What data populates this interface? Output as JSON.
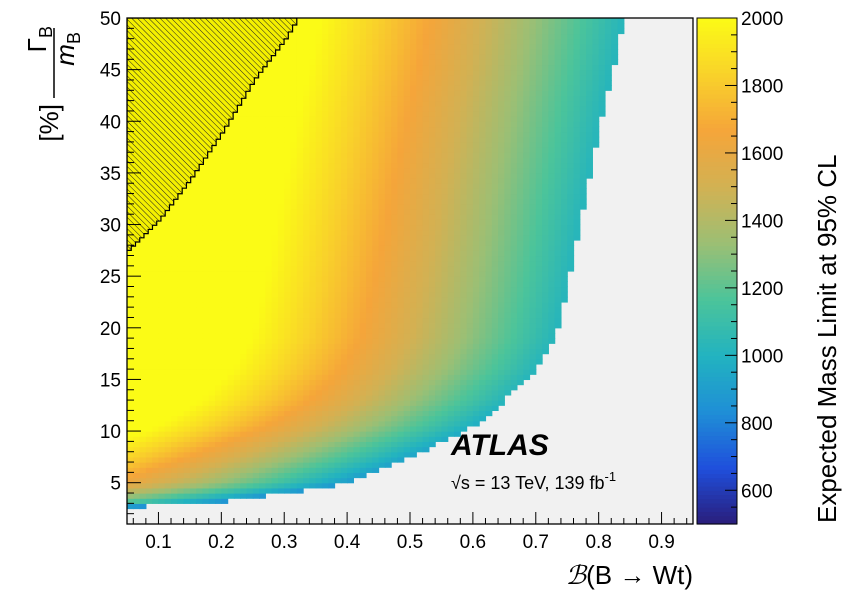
{
  "chart_data": {
    "type": "heatmap",
    "xlabel_prefix": "ℬ",
    "xlabel_rest": "(B → Wt)",
    "ylabel_num": "Γ",
    "ylabel_num_sub": "B",
    "ylabel_den": "m",
    "ylabel_den_sub": "B",
    "ylabel_unit": "[%]",
    "zlabel": "Expected Mass Limit at 95% CL",
    "xlim": [
      0.05,
      0.95
    ],
    "ylim": [
      1,
      50
    ],
    "zlim": [
      500,
      2000
    ],
    "x_ticks": [
      "0.1",
      "0.2",
      "0.3",
      "0.4",
      "0.5",
      "0.6",
      "0.7",
      "0.8",
      "0.9"
    ],
    "x_tick_values": [
      0.1,
      0.2,
      0.3,
      0.4,
      0.5,
      0.6,
      0.7,
      0.8,
      0.9
    ],
    "y_ticks": [
      "5",
      "10",
      "15",
      "20",
      "25",
      "30",
      "35",
      "40",
      "45",
      "50"
    ],
    "y_tick_values": [
      5,
      10,
      15,
      20,
      25,
      30,
      35,
      40,
      45,
      50
    ],
    "z_ticks": [
      "600",
      "800",
      "1000",
      "1200",
      "1400",
      "1600",
      "1800",
      "2000"
    ],
    "z_tick_values": [
      600,
      800,
      1000,
      1200,
      1400,
      1600,
      1800,
      2000
    ],
    "colorscale": [
      "#2a1d7a",
      "#1f4fdc",
      "#1f8fd6",
      "#22b3c0",
      "#4cc49a",
      "#9cbf74",
      "#d2b153",
      "#f5a53a",
      "#f9d22a",
      "#fbfb16"
    ],
    "no_limit_color": "#f1f1f1",
    "excluded_region": {
      "description_hatch": true,
      "boundary": [
        [
          0.05,
          27.5
        ],
        [
          0.1,
          30.5
        ],
        [
          0.15,
          34.5
        ],
        [
          0.2,
          39
        ],
        [
          0.25,
          44
        ],
        [
          0.3,
          48
        ],
        [
          0.32,
          50
        ]
      ]
    },
    "validity_boundary": [
      [
        0.05,
        2.5
      ],
      [
        0.1,
        3
      ],
      [
        0.2,
        3.2
      ],
      [
        0.3,
        4
      ],
      [
        0.4,
        5
      ],
      [
        0.5,
        7.5
      ],
      [
        0.6,
        10.5
      ],
      [
        0.65,
        13
      ],
      [
        0.7,
        16
      ],
      [
        0.73,
        19
      ],
      [
        0.75,
        24
      ],
      [
        0.77,
        30
      ],
      [
        0.79,
        36
      ],
      [
        0.81,
        42
      ],
      [
        0.83,
        47
      ],
      [
        0.84,
        50
      ]
    ],
    "annotations": {
      "experiment": "ATLAS",
      "sqrt_s": "√s = 13 TeV, 139 fb",
      "lumi_exp": "-1"
    }
  }
}
